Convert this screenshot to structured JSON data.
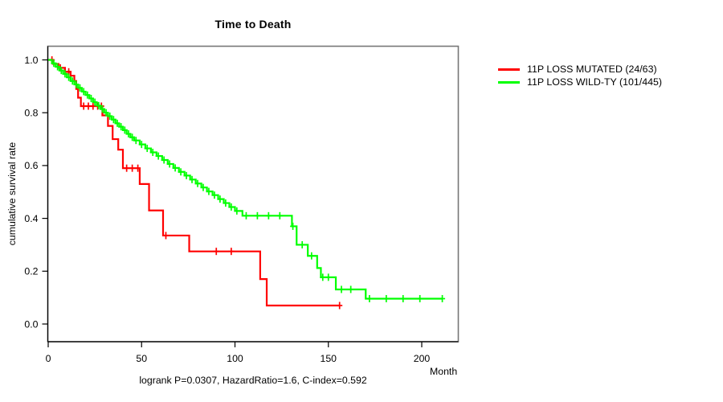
{
  "title": "Time to Death",
  "caption": "logrank P=0.0307, HazardRatio=1.6, C-index=0.592",
  "axes": {
    "x": {
      "label": "Month",
      "ticks": [
        0,
        50,
        100,
        150,
        200
      ]
    },
    "y": {
      "label": "cumulative survival rate",
      "ticks": [
        1.0,
        0.8,
        0.6,
        0.4,
        0.2,
        0.0
      ]
    }
  },
  "legend": {
    "items": [
      {
        "label": "11P LOSS MUTATED (24/63)",
        "color": "#ff0000"
      },
      {
        "label": "11P LOSS WILD-TY (101/445)",
        "color": "#00ff00"
      }
    ]
  },
  "chart_data": {
    "type": "line",
    "subtype": "kaplan_meier_step",
    "title": "Time to Death",
    "xlabel": "Month",
    "ylabel": "cumulative survival rate",
    "xlim": [
      0,
      220
    ],
    "ylim": [
      0,
      1.0
    ],
    "x_ticks": [
      0,
      50,
      100,
      150,
      200
    ],
    "y_ticks": [
      1.0,
      0.8,
      0.6,
      0.4,
      0.2,
      0.0
    ],
    "grid": false,
    "legend_position": "right-outside",
    "annotation": "logrank P=0.0307, HazardRatio=1.6, C-index=0.592",
    "box_color": "#777777",
    "axis_color": "#000000",
    "series": [
      {
        "name": "11P LOSS MUTATED (24/63)",
        "color": "#ff0000",
        "steps": [
          [
            0,
            1.0
          ],
          [
            2.5,
            0.985
          ],
          [
            5.5,
            0.97
          ],
          [
            9,
            0.955
          ],
          [
            12,
            0.94
          ],
          [
            14,
            0.92
          ],
          [
            15,
            0.89
          ],
          [
            16,
            0.857
          ],
          [
            17.5,
            0.825
          ],
          [
            29,
            0.79
          ],
          [
            32,
            0.75
          ],
          [
            34.5,
            0.7
          ],
          [
            37.5,
            0.66
          ],
          [
            40,
            0.59
          ],
          [
            49,
            0.53
          ],
          [
            54,
            0.43
          ],
          [
            61.5,
            0.335
          ],
          [
            75.5,
            0.275
          ],
          [
            113.5,
            0.17
          ],
          [
            117,
            0.07
          ]
        ],
        "end": 156,
        "censor_times": [
          2,
          6.5,
          11,
          19,
          21.5,
          24,
          26.5,
          28.5,
          42,
          45,
          48,
          63,
          90,
          98,
          156
        ]
      },
      {
        "name": "11P LOSS WILD-TY (101/445)",
        "color": "#00ff00",
        "steps": [
          [
            0,
            1.0
          ],
          [
            2,
            0.987
          ],
          [
            4,
            0.974
          ],
          [
            6,
            0.96
          ],
          [
            8,
            0.947
          ],
          [
            10,
            0.934
          ],
          [
            12,
            0.92
          ],
          [
            14,
            0.907
          ],
          [
            16,
            0.894
          ],
          [
            18,
            0.88
          ],
          [
            20,
            0.867
          ],
          [
            22,
            0.854
          ],
          [
            24,
            0.84
          ],
          [
            26,
            0.827
          ],
          [
            28,
            0.814
          ],
          [
            30,
            0.8
          ],
          [
            32,
            0.787
          ],
          [
            34,
            0.774
          ],
          [
            36,
            0.76
          ],
          [
            38,
            0.747
          ],
          [
            40,
            0.734
          ],
          [
            42,
            0.72
          ],
          [
            44,
            0.707
          ],
          [
            46,
            0.695
          ],
          [
            49,
            0.68
          ],
          [
            52,
            0.665
          ],
          [
            55,
            0.65
          ],
          [
            58,
            0.636
          ],
          [
            61,
            0.621
          ],
          [
            64,
            0.606
          ],
          [
            67,
            0.591
          ],
          [
            70,
            0.576
          ],
          [
            73,
            0.562
          ],
          [
            76,
            0.547
          ],
          [
            79,
            0.532
          ],
          [
            82,
            0.517
          ],
          [
            85,
            0.502
          ],
          [
            88,
            0.488
          ],
          [
            91,
            0.473
          ],
          [
            94,
            0.458
          ],
          [
            97,
            0.443
          ],
          [
            100,
            0.428
          ],
          [
            104,
            0.41
          ],
          [
            130.5,
            0.37
          ],
          [
            133,
            0.3
          ],
          [
            139,
            0.258
          ],
          [
            144,
            0.212
          ],
          [
            146,
            0.177
          ],
          [
            154,
            0.131
          ],
          [
            170,
            0.096
          ]
        ],
        "end": 211,
        "censor_times": [
          3,
          5,
          7,
          9,
          11,
          13,
          15,
          17,
          19,
          21,
          23,
          25,
          27,
          29,
          31,
          33,
          35,
          37,
          39,
          41,
          43,
          45,
          47,
          50,
          53,
          56,
          59,
          62,
          65,
          68,
          71,
          74,
          77,
          80,
          83,
          86,
          89,
          92,
          95,
          98,
          101,
          106,
          112,
          118,
          124,
          131,
          136,
          141,
          147,
          150,
          157,
          162,
          172,
          181,
          190,
          199,
          211
        ]
      }
    ]
  }
}
